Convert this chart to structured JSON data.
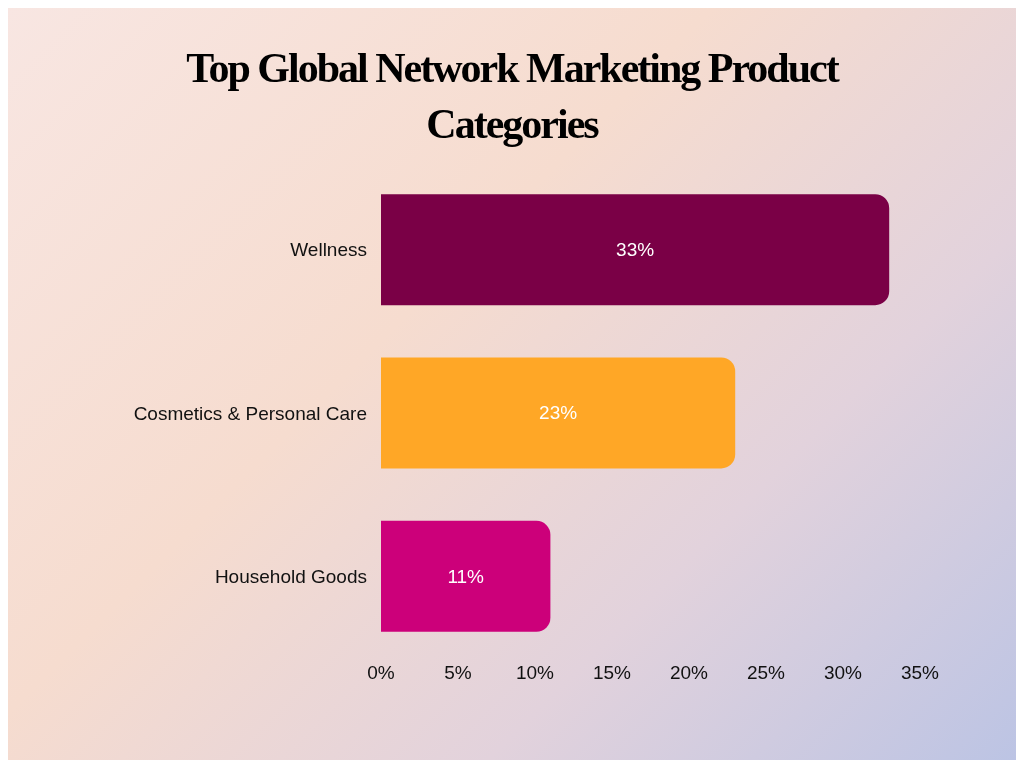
{
  "chart_data": {
    "type": "bar",
    "orientation": "horizontal",
    "title": "Top Global Network Marketing Product Categories",
    "categories": [
      "Wellness",
      "Cosmetics & Personal Care",
      "Household Goods"
    ],
    "values": [
      33,
      23,
      11
    ],
    "colors": [
      "#7a0046",
      "#ffa726",
      "#cc007a"
    ],
    "value_labels": [
      "33%",
      "23%",
      "11%"
    ],
    "xlim": [
      0,
      35
    ],
    "xticks": [
      {
        "value": 0,
        "label": "0%"
      },
      {
        "value": 5,
        "label": "5%"
      },
      {
        "value": 10,
        "label": "10%"
      },
      {
        "value": 15,
        "label": "15%"
      },
      {
        "value": 20,
        "label": "20%"
      },
      {
        "value": 25,
        "label": "25%"
      },
      {
        "value": 30,
        "label": "30%"
      },
      {
        "value": 35,
        "label": "35%"
      }
    ],
    "grid": false,
    "legend": false
  }
}
